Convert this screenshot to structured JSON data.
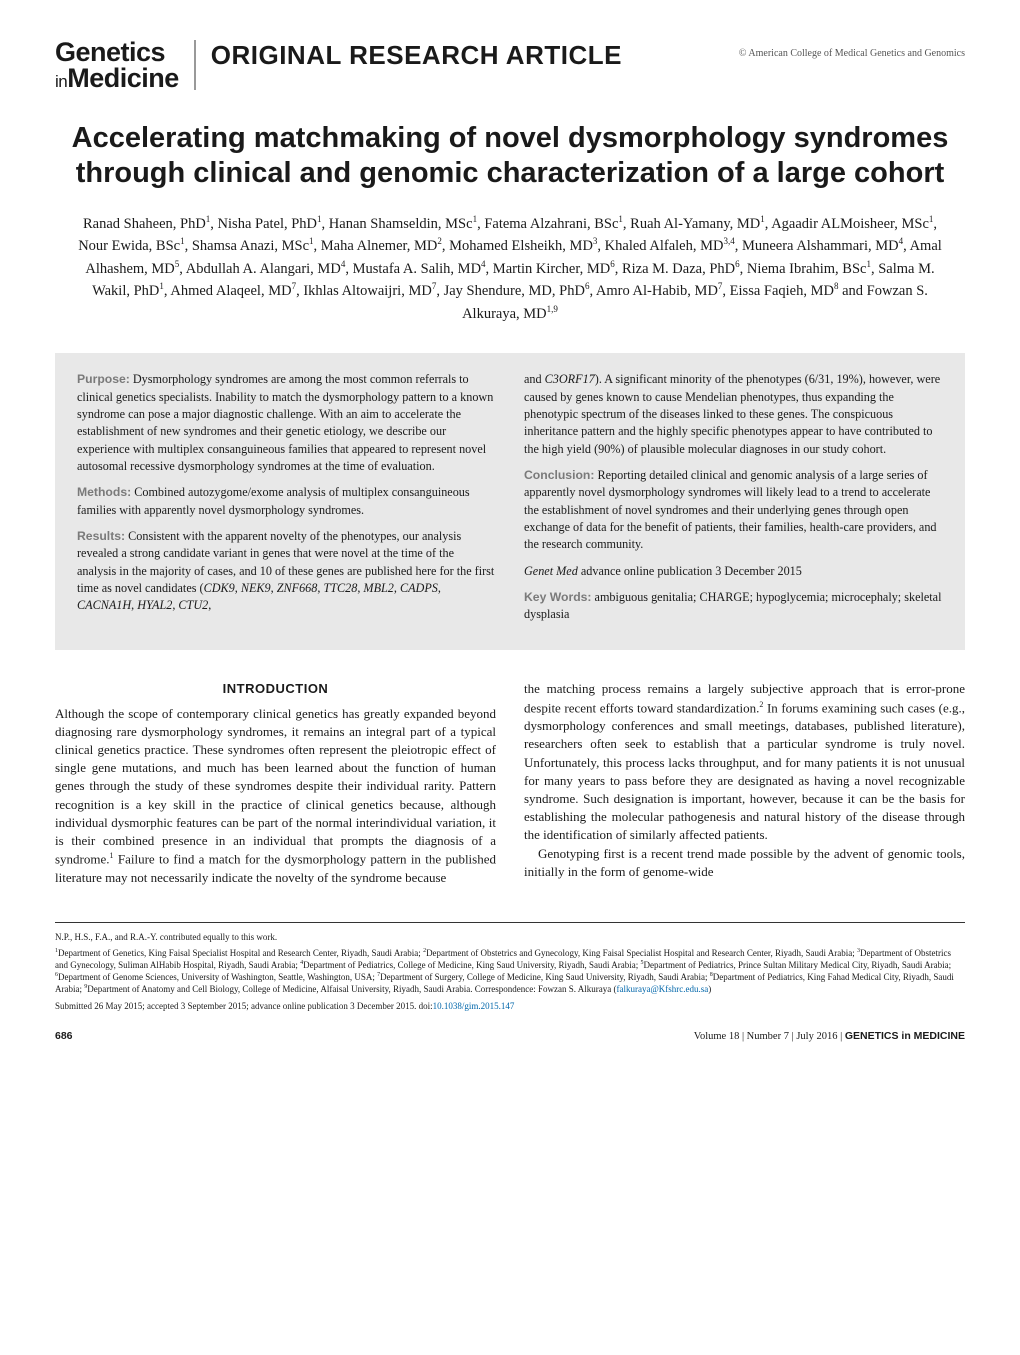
{
  "journal": {
    "line1": "Genetics",
    "line2_prefix": "in",
    "line2_main": "Medicine",
    "article_type": "ORIGINAL RESEARCH ARTICLE",
    "copyright": "© American College of Medical Genetics and Genomics"
  },
  "title": "Accelerating matchmaking of novel dysmorphology syndromes through clinical and genomic characterization of a large cohort",
  "authors_html": "Ranad Shaheen, PhD<sup>1</sup>, Nisha Patel, PhD<sup>1</sup>, Hanan Shamseldin, MSc<sup>1</sup>, Fatema Alzahrani, BSc<sup>1</sup>, Ruah Al-Yamany, MD<sup>1</sup>, Agaadir ALMoisheer, MSc<sup>1</sup>, Nour Ewida, BSc<sup>1</sup>, Shamsa Anazi, MSc<sup>1</sup>, Maha Alnemer, MD<sup>2</sup>, Mohamed Elsheikh, MD<sup>3</sup>, Khaled Alfaleh, MD<sup>3,4</sup>, Muneera Alshammari, MD<sup>4</sup>, Amal Alhashem, MD<sup>5</sup>, Abdullah A. Alangari, MD<sup>4</sup>, Mustafa A. Salih, MD<sup>4</sup>, Martin Kircher, MD<sup>6</sup>, Riza M. Daza, PhD<sup>6</sup>, Niema Ibrahim, BSc<sup>1</sup>, Salma M. Wakil, PhD<sup>1</sup>, Ahmed Alaqeel, MD<sup>7</sup>, Ikhlas Altowaijri, MD<sup>7</sup>, Jay Shendure, MD, PhD<sup>6</sup>, Amro Al-Habib, MD<sup>7</sup>, Eissa Faqieh, MD<sup>8</sup> and Fowzan S. Alkuraya, MD<sup>1,9</sup>",
  "abstract": {
    "left": {
      "purpose_label": "Purpose:",
      "purpose": "Dysmorphology syndromes are among the most common referrals to clinical genetics specialists. Inability to match the dysmorphology pattern to a known syndrome can pose a major diagnostic challenge. With an aim to accelerate the establishment of new syndromes and their genetic etiology, we describe our experience with multiplex consanguineous families that appeared to represent novel autosomal recessive dysmorphology syndromes at the time of evaluation.",
      "methods_label": "Methods:",
      "methods": "Combined autozygome/exome analysis of multiplex consanguineous families with apparently novel dysmorphology syndromes.",
      "results_label": "Results:",
      "results": "Consistent with the apparent novelty of the phenotypes, our analysis revealed a strong candidate variant in genes that were novel at the time of the analysis in the majority of cases, and 10 of these genes are published here for the first time as novel candidates (<em>CDK9</em>, <em>NEK9</em>, <em>ZNF668</em>, <em>TTC28</em>, <em>MBL2</em>, <em>CADPS</em>, <em>CACNA1H</em>, <em>HYAL2</em>, <em>CTU2</em>,"
    },
    "right": {
      "cont": "and <em>C3ORF17</em>). A significant minority of the phenotypes (6/31, 19%), however, were caused by genes known to cause Mendelian phenotypes, thus expanding the phenotypic spectrum of the diseases linked to these genes. The conspicuous inheritance pattern and the highly specific phenotypes appear to have contributed to the high yield (90%) of plausible molecular diagnoses in our study cohort.",
      "conclusion_label": "Conclusion:",
      "conclusion": "Reporting detailed clinical and genomic analysis of a large series of apparently novel dysmorphology syndromes will likely lead to a trend to accelerate the establishment of novel syndromes and their underlying genes through open exchange of data for the benefit of patients, their families, health-care providers, and the research community.",
      "genet_med": "Genet Med",
      "genet_med_rest": " advance online publication 3 December 2015",
      "keywords_label": "Key Words:",
      "keywords": "ambiguous genitalia; CHARGE; hypoglycemia; microcephaly; skeletal dysplasia"
    }
  },
  "intro_heading": "INTRODUCTION",
  "body": {
    "left_p1": "Although the scope of contemporary clinical genetics has greatly expanded beyond diagnosing rare dysmorphology syndromes, it remains an integral part of a typical clinical genetics practice. These syndromes often represent the pleiotropic effect of single gene mutations, and much has been learned about the function of human genes through the study of these syndromes despite their individual rarity. Pattern recognition is a key skill in the practice of clinical genetics because, although individual dysmorphic features can be part of the normal interindividual variation, it is their combined presence in an individual that prompts the diagnosis of a syndrome.<sup>1</sup> Failure to find a match for the dysmorphology pattern in the published literature may not necessarily indicate the novelty of the syndrome because",
    "right_p1": "the matching process remains a largely subjective approach that is error-prone despite recent efforts toward standardization.<sup>2</sup> In forums examining such cases (e.g., dysmorphology conferences and small meetings, databases, published literature), researchers often seek to establish that a particular syndrome is truly novel. Unfortunately, this process lacks throughput, and for many patients it is not unusual for many years to pass before they are designated as having a novel recognizable syndrome. Such designation is important, however, because it can be the basis for establishing the molecular pathogenesis and natural history of the disease through the identification of similarly affected patients.",
    "right_p2": "Genotyping first is a recent trend made possible by the advent of genomic tools, initially in the form of genome-wide"
  },
  "footer": {
    "contrib": "N.P., H.S., F.A., and R.A.-Y. contributed equally to this work.",
    "affiliations": "<sup>1</sup>Department of Genetics, King Faisal Specialist Hospital and Research Center, Riyadh, Saudi Arabia; <sup>2</sup>Department of Obstetrics and Gynecology, King Faisal Specialist Hospital and Research Center, Riyadh, Saudi Arabia; <sup>3</sup>Department of Obstetrics and Gynecology, Suliman AlHabib Hospital, Riyadh, Saudi Arabia; <sup>4</sup>Department of Pediatrics, College of Medicine, King Saud University, Riyadh, Saudi Arabia; <sup>5</sup>Department of Pediatrics, Prince Sultan Military Medical City, Riyadh, Saudi Arabia; <sup>6</sup>Department of Genome Sciences, University of Washington, Seattle, Washington, USA; <sup>7</sup>Department of Surgery, College of Medicine, King Saud University, Riyadh, Saudi Arabia; <sup>8</sup>Department of Pediatrics, King Fahad Medical City, Riyadh, Saudi Arabia; <sup>9</sup>Department of Anatomy and Cell Biology, College of Medicine, Alfaisal University, Riyadh, Saudi Arabia. Correspondence: Fowzan S. Alkuraya (<a href=\"#\">falkuraya@Kfshrc.edu.sa</a>)",
    "submitted": "Submitted 26 May 2015; accepted 3 September 2015; advance online publication 3 December 2015. doi:<a href=\"#\">10.1038/gim.2015.147</a>"
  },
  "page_footer": {
    "page_num": "686",
    "meta_html": "Volume 18 | Number 7 | July 2016 | <b>GENETICS in MEDICINE</b>"
  },
  "styles": {
    "background": "#ffffff",
    "abstract_bg": "#e8e8e8",
    "abstract_label_color": "#7a7a7a",
    "link_color": "#0066aa",
    "title_fontsize": 29,
    "author_fontsize": 14.5,
    "body_fontsize": 13,
    "footer_fontsize": 9
  }
}
